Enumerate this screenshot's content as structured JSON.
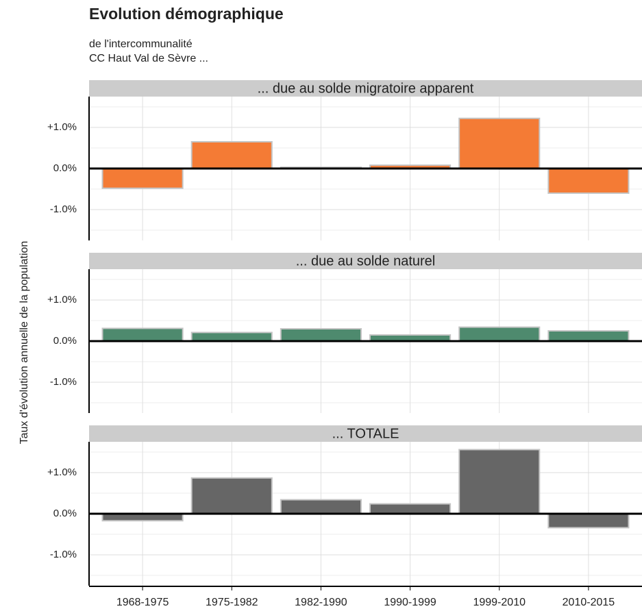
{
  "chart_data": {
    "type": "bar",
    "facet": true,
    "title": "Evolution démographique",
    "subtitle": [
      "de l'intercommunalité",
      "CC Haut Val de Sèvre ..."
    ],
    "y_label": "Taux d'évolution annuelle de la population",
    "categories": [
      "1968-1975",
      "1975-1982",
      "1982-1990",
      "1990-1999",
      "1999-2010",
      "2010-2015"
    ],
    "series": [
      {
        "name": "... due au solde migratoire apparent",
        "color": "#f47b35",
        "values": [
          -0.48,
          0.65,
          0.03,
          0.08,
          1.22,
          -0.6
        ]
      },
      {
        "name": "... due au solde naturel",
        "color": "#4e8a6e",
        "values": [
          0.31,
          0.21,
          0.3,
          0.15,
          0.34,
          0.25
        ]
      },
      {
        "name": "... TOTALE",
        "color": "#666666",
        "values": [
          -0.17,
          0.87,
          0.34,
          0.24,
          1.56,
          -0.34
        ]
      }
    ],
    "ylim": [
      -1.75,
      1.75
    ],
    "yticks": [
      {
        "value": -1,
        "label": "-1.0%"
      },
      {
        "value": 0,
        "label": "0.0%"
      },
      {
        "value": 1,
        "label": "+1.0%"
      }
    ],
    "yminorticks": [
      -1.5,
      -0.5,
      0.5,
      1.5
    ],
    "grid": true
  }
}
